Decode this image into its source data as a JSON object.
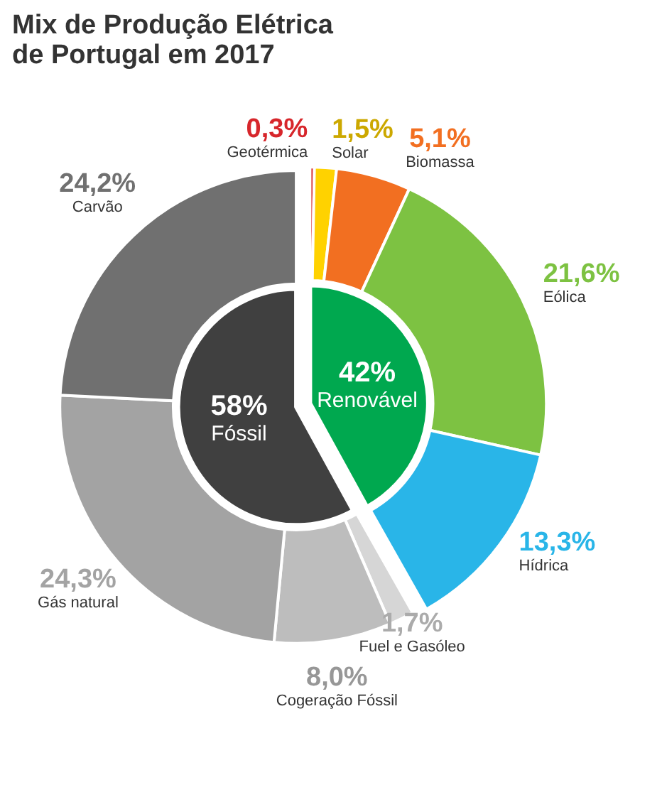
{
  "chart_data": {
    "type": "donut",
    "title": "Mix de Produção Elétrica\nde Portugal em 2017",
    "categories": [
      null,
      null,
      "Geotérmica",
      "Solar",
      "Biomassa",
      "Eólica",
      "Hídrica",
      "Fuel e Gasóleo",
      "Cogeração Fóssil",
      "Gás natural",
      "Carvão"
    ],
    "annotations": [
      "Renovável",
      "Fóssil"
    ],
    "series": [
      {
        "values": [
          null,
          null,
          0.3,
          1.5,
          5.1,
          21.6,
          13.3,
          1.7,
          8.0,
          24.3,
          24.2
        ],
        "colors": [
          null,
          null,
          "#d7262b",
          "#ffd200",
          "#f26f21",
          "#7dc242",
          "#29b5e8",
          "#d6d6d6",
          "#bdbdbd",
          "#a3a3a3",
          "#707070"
        ],
        "value_labels": [
          null,
          null,
          "0,3%",
          "1,5%",
          "5,1%",
          "21,6%",
          "13,3%",
          "1,7%",
          "8,0%",
          "24,3%",
          "24,2%"
        ]
      },
      {
        "type": "pie",
        "values": [
          42,
          58,
          null,
          null,
          null,
          null,
          null,
          null,
          null,
          null,
          null
        ],
        "colors": [
          "#00a84f",
          "#404040",
          null,
          null,
          null,
          null,
          null,
          null,
          null,
          null,
          null
        ],
        "value_labels": [
          "42%",
          "58%",
          null,
          null,
          null,
          null,
          null,
          null,
          null,
          null,
          null
        ]
      }
    ]
  }
}
